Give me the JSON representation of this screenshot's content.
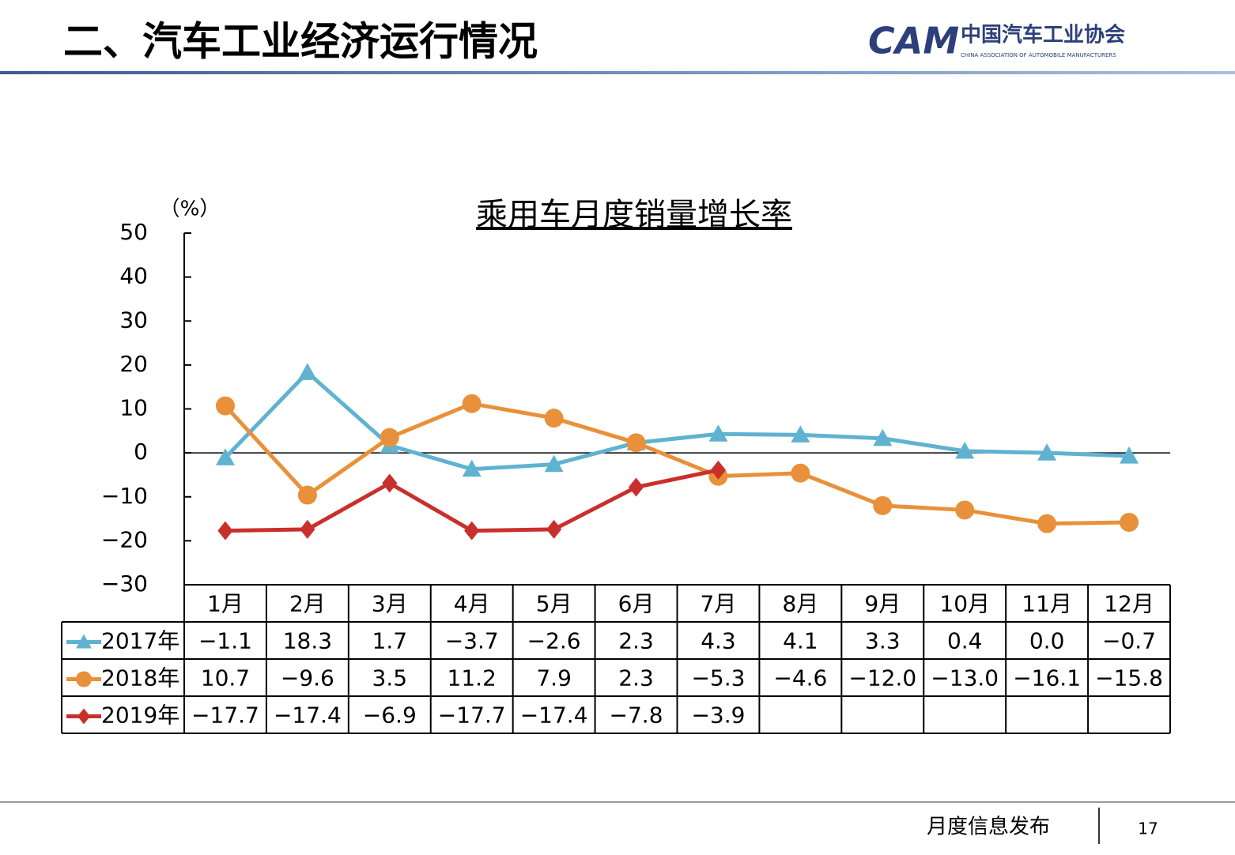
{
  "header": {
    "title": "二、汽车工业经济运行情况",
    "logo": {
      "mark": "CAM",
      "name": "中国汽车工业协会",
      "english": "CHINA ASSOCIATION OF AUTOMOBILE MANUFACTURERS"
    }
  },
  "chart_data": {
    "type": "line",
    "title": "乘用车月度销量增长率",
    "y_label": "（%）",
    "categories": [
      "1月",
      "2月",
      "3月",
      "4月",
      "5月",
      "6月",
      "7月",
      "8月",
      "9月",
      "10月",
      "11月",
      "12月"
    ],
    "series": [
      {
        "name": "2017年",
        "color": "#5fb3d0",
        "marker": "triangle",
        "values": [
          -1.1,
          18.3,
          1.7,
          -3.7,
          -2.6,
          2.3,
          4.3,
          4.1,
          3.3,
          0.4,
          0.0,
          -0.7
        ],
        "value_labels": [
          "−1.1",
          "18.3",
          "1.7",
          "−3.7",
          "−2.6",
          "2.3",
          "4.3",
          "4.1",
          "3.3",
          "0.4",
          "0.0",
          "−0.7"
        ]
      },
      {
        "name": "2018年",
        "color": "#e8913a",
        "marker": "circle",
        "values": [
          10.7,
          -9.6,
          3.5,
          11.2,
          7.9,
          2.3,
          -5.3,
          -4.6,
          -12.0,
          -13.0,
          -16.1,
          -15.8
        ],
        "value_labels": [
          "10.7",
          "−9.6",
          "3.5",
          "11.2",
          "7.9",
          "2.3",
          "−5.3",
          "−4.6",
          "−12.0",
          "−13.0",
          "−16.1",
          "−15.8"
        ]
      },
      {
        "name": "2019年",
        "color": "#c9302c",
        "marker": "diamond",
        "values": [
          -17.7,
          -17.4,
          -6.9,
          -17.7,
          -17.4,
          -7.8,
          -3.9,
          null,
          null,
          null,
          null,
          null
        ],
        "value_labels": [
          "−17.7",
          "−17.4",
          "−6.9",
          "−17.7",
          "−17.4",
          "−7.8",
          "−3.9",
          null,
          null,
          null,
          null,
          null
        ]
      }
    ],
    "ylim": [
      -30,
      50
    ],
    "yticks": [
      {
        "value": -30,
        "label": "−30"
      },
      {
        "value": -20,
        "label": "−20"
      },
      {
        "value": -10,
        "label": "−10"
      },
      0,
      10,
      20,
      30,
      40,
      50
    ],
    "zero_line": true,
    "data_table": true
  },
  "footer": {
    "text": "月度信息发布",
    "page": "17"
  }
}
